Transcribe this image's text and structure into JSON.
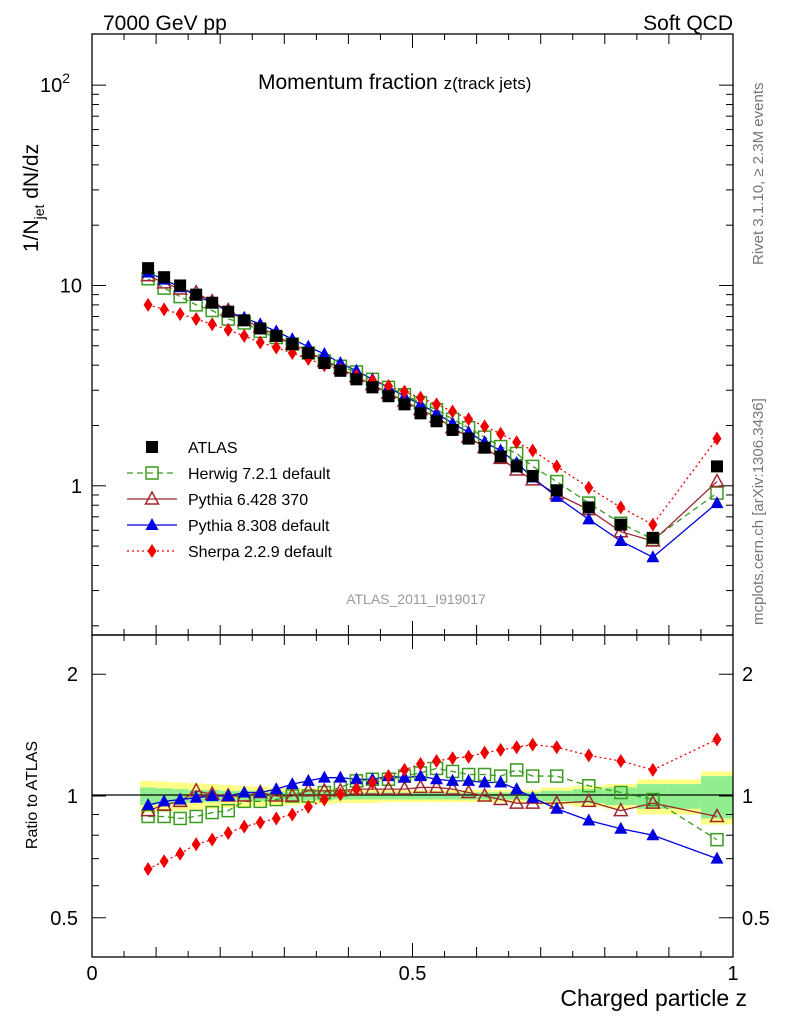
{
  "header": {
    "left": "7000 GeV pp",
    "right": "Soft QCD"
  },
  "side_text": {
    "rivet": "Rivet 3.1.10, ≥ 2.3M events",
    "mcplots": "mcplots.cern.ch [arXiv:1306.3436]"
  },
  "chart_data": {
    "type": "line",
    "title": "Momentum fraction z(track jets)",
    "title_main": "Momentum fraction ",
    "title_sub": "z(track jets)",
    "analysis_tag": "ATLAS_2011_I919017",
    "xlabel": "Charged particle z",
    "ylabel_main": "1/N_jet dN/dz",
    "ylabel_ratio": "Ratio to ATLAS",
    "xlim": [
      0,
      1
    ],
    "ylim_main": [
      0.18,
      180
    ],
    "ylim_ratio": [
      0.4,
      2.5
    ],
    "main_scale": "log",
    "ratio_scale": "log",
    "x_ticks": [
      "0",
      "0.5",
      "1"
    ],
    "y_ticks_main": [
      "1",
      "10",
      "10^2"
    ],
    "y_ticks_ratio": [
      "0.5",
      "1",
      "2"
    ],
    "legend_placement": "lower-left",
    "x": [
      0.0875,
      0.1125,
      0.1375,
      0.1625,
      0.1875,
      0.2125,
      0.2375,
      0.2625,
      0.2875,
      0.3125,
      0.3375,
      0.3625,
      0.3875,
      0.4125,
      0.4375,
      0.4625,
      0.4875,
      0.5125,
      0.5375,
      0.5625,
      0.5875,
      0.6125,
      0.6375,
      0.6625,
      0.6875,
      0.725,
      0.775,
      0.825,
      0.875,
      0.975
    ],
    "series": [
      {
        "name": "ATLAS",
        "color": "#000000",
        "marker": "square",
        "line": "none",
        "values": [
          12.2,
          11.0,
          10.0,
          9.0,
          8.2,
          7.4,
          6.7,
          6.1,
          5.6,
          5.1,
          4.6,
          4.1,
          3.75,
          3.4,
          3.1,
          2.8,
          2.55,
          2.3,
          2.1,
          1.9,
          1.72,
          1.55,
          1.4,
          1.25,
          1.12,
          0.95,
          0.78,
          0.64,
          0.55,
          1.25
        ]
      },
      {
        "name": "Herwig 7.2.1 default",
        "color": "#3a9b1e",
        "marker": "open-square",
        "line": "dashed",
        "values": [
          10.8,
          9.7,
          8.8,
          8.0,
          7.5,
          6.8,
          6.5,
          5.9,
          5.5,
          5.1,
          4.6,
          4.2,
          3.95,
          3.7,
          3.4,
          3.1,
          2.85,
          2.6,
          2.4,
          2.15,
          1.95,
          1.75,
          1.57,
          1.45,
          1.25,
          1.05,
          0.82,
          0.65,
          0.54,
          0.92
        ]
      },
      {
        "name": "Pythia 6.428 370",
        "color": "#a0262e",
        "marker": "open-triangle",
        "line": "solid",
        "values": [
          11.2,
          10.3,
          9.6,
          9.2,
          8.3,
          7.5,
          6.7,
          6.2,
          5.6,
          5.1,
          4.7,
          4.2,
          3.85,
          3.5,
          3.2,
          2.9,
          2.65,
          2.4,
          2.2,
          1.95,
          1.75,
          1.55,
          1.37,
          1.2,
          1.07,
          0.91,
          0.76,
          0.59,
          0.53,
          1.05
        ]
      },
      {
        "name": "Pythia 8.308 default",
        "color": "#0000e0",
        "marker": "triangle",
        "line": "solid",
        "values": [
          11.6,
          10.7,
          9.8,
          8.9,
          8.2,
          7.4,
          6.9,
          6.4,
          5.9,
          5.4,
          4.95,
          4.55,
          4.1,
          3.75,
          3.4,
          3.1,
          2.8,
          2.55,
          2.3,
          2.05,
          1.85,
          1.65,
          1.5,
          1.3,
          1.1,
          0.88,
          0.68,
          0.53,
          0.44,
          0.82
        ]
      },
      {
        "name": "Sherpa 2.2.9 default",
        "color": "#ee0000",
        "marker": "diamond",
        "line": "dotted",
        "values": [
          8.0,
          7.6,
          7.2,
          6.8,
          6.4,
          6.0,
          5.6,
          5.2,
          4.9,
          4.6,
          4.3,
          4.0,
          3.8,
          3.55,
          3.35,
          3.15,
          2.95,
          2.75,
          2.55,
          2.35,
          2.15,
          1.98,
          1.82,
          1.65,
          1.5,
          1.25,
          0.98,
          0.78,
          0.64,
          1.72
        ]
      }
    ],
    "ratio_band": {
      "x_edges": [
        0.075,
        0.1,
        0.125,
        0.15,
        0.175,
        0.2,
        0.225,
        0.25,
        0.275,
        0.3,
        0.325,
        0.35,
        0.375,
        0.4,
        0.425,
        0.45,
        0.475,
        0.5,
        0.525,
        0.55,
        0.575,
        0.6,
        0.625,
        0.65,
        0.675,
        0.7,
        0.75,
        0.8,
        0.85,
        0.9,
        0.95,
        1.0
      ],
      "stat_half_width": [
        0.05,
        0.045,
        0.04,
        0.035,
        0.035,
        0.03,
        0.03,
        0.03,
        0.025,
        0.025,
        0.025,
        0.025,
        0.02,
        0.02,
        0.02,
        0.02,
        0.02,
        0.02,
        0.02,
        0.02,
        0.02,
        0.02,
        0.02,
        0.02,
        0.02,
        0.03,
        0.04,
        0.05,
        0.07,
        0.07,
        0.12
      ],
      "total_half_width": [
        0.09,
        0.085,
        0.08,
        0.075,
        0.07,
        0.065,
        0.06,
        0.055,
        0.05,
        0.05,
        0.045,
        0.045,
        0.04,
        0.04,
        0.04,
        0.035,
        0.035,
        0.035,
        0.035,
        0.035,
        0.035,
        0.035,
        0.035,
        0.035,
        0.035,
        0.05,
        0.06,
        0.07,
        0.1,
        0.1,
        0.15
      ],
      "stat_color": "#90ee90",
      "total_color": "#ffff88"
    },
    "ratio_series": [
      {
        "name": "Herwig 7.2.1 default",
        "values": [
          0.89,
          0.89,
          0.88,
          0.89,
          0.91,
          0.92,
          0.97,
          0.97,
          0.98,
          1.0,
          1.0,
          1.02,
          1.05,
          1.09,
          1.1,
          1.1,
          1.12,
          1.14,
          1.17,
          1.15,
          1.13,
          1.13,
          1.12,
          1.16,
          1.12,
          1.12,
          1.06,
          1.02,
          0.98,
          0.78
        ]
      },
      {
        "name": "Pythia 6.428 370",
        "values": [
          0.92,
          0.95,
          0.97,
          1.03,
          1.01,
          1.0,
          1.0,
          1.02,
          1.0,
          1.0,
          1.03,
          1.03,
          1.03,
          1.04,
          1.04,
          1.04,
          1.04,
          1.05,
          1.05,
          1.04,
          1.02,
          1.0,
          0.98,
          0.96,
          0.96,
          0.96,
          0.97,
          0.92,
          0.96,
          0.89
        ]
      },
      {
        "name": "Pythia 8.308 default",
        "values": [
          0.95,
          0.97,
          0.98,
          0.99,
          1.0,
          1.0,
          1.02,
          1.02,
          1.04,
          1.07,
          1.09,
          1.11,
          1.11,
          1.1,
          1.1,
          1.12,
          1.11,
          1.12,
          1.1,
          1.09,
          1.09,
          1.08,
          1.08,
          1.04,
          0.99,
          0.93,
          0.87,
          0.83,
          0.8,
          0.7
        ]
      },
      {
        "name": "Sherpa 2.2.9 default",
        "values": [
          0.66,
          0.69,
          0.72,
          0.76,
          0.78,
          0.81,
          0.84,
          0.86,
          0.88,
          0.9,
          0.94,
          0.98,
          1.01,
          1.04,
          1.08,
          1.12,
          1.16,
          1.2,
          1.22,
          1.24,
          1.25,
          1.28,
          1.3,
          1.32,
          1.34,
          1.32,
          1.26,
          1.22,
          1.16,
          1.38
        ]
      }
    ]
  }
}
